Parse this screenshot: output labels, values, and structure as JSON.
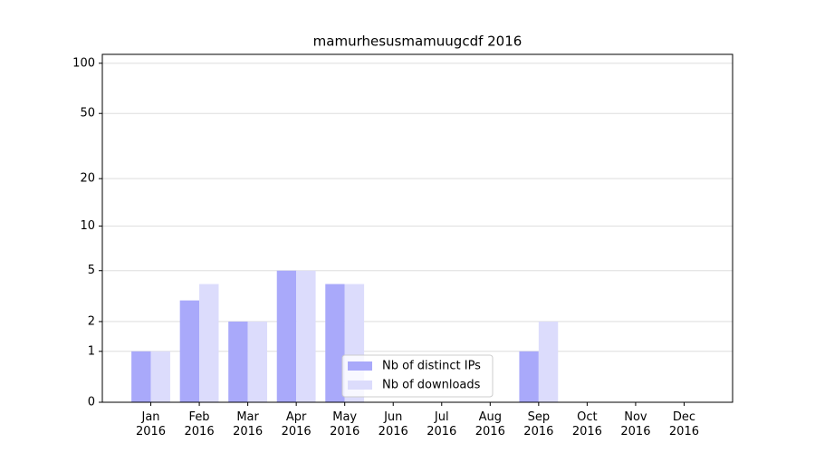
{
  "chart_data": {
    "type": "bar",
    "title": "mamurhesusmamuugcdf 2016",
    "categories": [
      "Jan\n2016",
      "Feb\n2016",
      "Mar\n2016",
      "Apr\n2016",
      "May\n2016",
      "Jun\n2016",
      "Jul\n2016",
      "Aug\n2016",
      "Sep\n2016",
      "Oct\n2016",
      "Nov\n2016",
      "Dec\n2016"
    ],
    "series": [
      {
        "name": "Nb of distinct IPs",
        "color": "#a9a9fa",
        "values": [
          1,
          3,
          2,
          5,
          4,
          0,
          0,
          0,
          1,
          0,
          0,
          0
        ]
      },
      {
        "name": "Nb of downloads",
        "color": "#dcdcfc",
        "values": [
          1,
          4,
          2,
          5,
          4,
          0,
          0,
          0,
          2,
          0,
          0,
          0
        ]
      }
    ],
    "y_scale": "log1p",
    "ylim": [
      0,
      113
    ],
    "yticks": [
      0,
      1,
      2,
      5,
      10,
      20,
      50,
      100
    ],
    "grid": true,
    "legend": "lower center"
  }
}
